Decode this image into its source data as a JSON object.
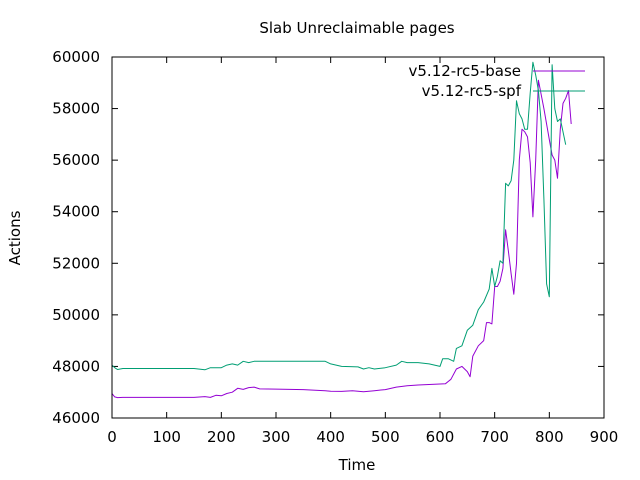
{
  "chart_data": {
    "type": "line",
    "title": "Slab Unreclaimable pages",
    "xlabel": "Time",
    "ylabel": "Actions",
    "xlim": [
      0,
      900
    ],
    "ylim": [
      46000,
      60000
    ],
    "x_ticks": [
      0,
      100,
      200,
      300,
      400,
      500,
      600,
      700,
      800,
      900
    ],
    "y_ticks": [
      46000,
      48000,
      50000,
      52000,
      54000,
      56000,
      58000,
      60000
    ],
    "grid": false,
    "legend_position": "top-right",
    "series": [
      {
        "name": "v5.12-rc5-base",
        "color": "#9400d3",
        "points": [
          [
            0,
            46950
          ],
          [
            5,
            46820
          ],
          [
            10,
            46790
          ],
          [
            20,
            46800
          ],
          [
            50,
            46800
          ],
          [
            100,
            46800
          ],
          [
            150,
            46800
          ],
          [
            170,
            46830
          ],
          [
            180,
            46800
          ],
          [
            190,
            46880
          ],
          [
            200,
            46860
          ],
          [
            210,
            46950
          ],
          [
            220,
            47000
          ],
          [
            230,
            47150
          ],
          [
            240,
            47110
          ],
          [
            250,
            47180
          ],
          [
            260,
            47200
          ],
          [
            270,
            47130
          ],
          [
            300,
            47120
          ],
          [
            350,
            47100
          ],
          [
            390,
            47060
          ],
          [
            400,
            47040
          ],
          [
            420,
            47030
          ],
          [
            440,
            47060
          ],
          [
            460,
            47020
          ],
          [
            480,
            47060
          ],
          [
            500,
            47100
          ],
          [
            520,
            47200
          ],
          [
            540,
            47250
          ],
          [
            560,
            47280
          ],
          [
            580,
            47300
          ],
          [
            600,
            47320
          ],
          [
            610,
            47330
          ],
          [
            620,
            47500
          ],
          [
            630,
            47900
          ],
          [
            640,
            48000
          ],
          [
            650,
            47800
          ],
          [
            655,
            47600
          ],
          [
            660,
            48400
          ],
          [
            670,
            48800
          ],
          [
            680,
            49000
          ],
          [
            685,
            49700
          ],
          [
            690,
            49700
          ],
          [
            695,
            49650
          ],
          [
            700,
            51100
          ],
          [
            705,
            51100
          ],
          [
            710,
            51300
          ],
          [
            715,
            51800
          ],
          [
            720,
            53300
          ],
          [
            725,
            52500
          ],
          [
            730,
            51600
          ],
          [
            735,
            50800
          ],
          [
            740,
            52000
          ],
          [
            745,
            56000
          ],
          [
            750,
            57200
          ],
          [
            755,
            57100
          ],
          [
            760,
            56900
          ],
          [
            765,
            55900
          ],
          [
            770,
            53800
          ],
          [
            775,
            56000
          ],
          [
            780,
            59100
          ],
          [
            790,
            58000
          ],
          [
            800,
            56800
          ],
          [
            805,
            56200
          ],
          [
            810,
            56000
          ],
          [
            815,
            55300
          ],
          [
            820,
            57200
          ],
          [
            825,
            58200
          ],
          [
            830,
            58400
          ],
          [
            835,
            58700
          ],
          [
            840,
            57400
          ]
        ]
      },
      {
        "name": "v5.12-rc5-spf",
        "color": "#009e73",
        "points": [
          [
            0,
            48050
          ],
          [
            5,
            47950
          ],
          [
            10,
            47880
          ],
          [
            20,
            47920
          ],
          [
            50,
            47920
          ],
          [
            100,
            47920
          ],
          [
            150,
            47920
          ],
          [
            170,
            47870
          ],
          [
            180,
            47950
          ],
          [
            190,
            47950
          ],
          [
            200,
            47950
          ],
          [
            210,
            48050
          ],
          [
            220,
            48100
          ],
          [
            230,
            48050
          ],
          [
            240,
            48200
          ],
          [
            250,
            48150
          ],
          [
            260,
            48200
          ],
          [
            300,
            48200
          ],
          [
            350,
            48200
          ],
          [
            390,
            48200
          ],
          [
            400,
            48100
          ],
          [
            420,
            48000
          ],
          [
            450,
            47980
          ],
          [
            460,
            47900
          ],
          [
            470,
            47950
          ],
          [
            480,
            47900
          ],
          [
            500,
            47950
          ],
          [
            520,
            48050
          ],
          [
            530,
            48200
          ],
          [
            540,
            48150
          ],
          [
            560,
            48150
          ],
          [
            580,
            48100
          ],
          [
            600,
            48000
          ],
          [
            605,
            48300
          ],
          [
            615,
            48300
          ],
          [
            625,
            48200
          ],
          [
            630,
            48700
          ],
          [
            640,
            48800
          ],
          [
            650,
            49400
          ],
          [
            660,
            49600
          ],
          [
            670,
            50200
          ],
          [
            680,
            50500
          ],
          [
            690,
            51000
          ],
          [
            695,
            51800
          ],
          [
            700,
            51100
          ],
          [
            705,
            51500
          ],
          [
            710,
            52100
          ],
          [
            715,
            52000
          ],
          [
            720,
            55100
          ],
          [
            725,
            55000
          ],
          [
            730,
            55200
          ],
          [
            735,
            56000
          ],
          [
            740,
            58300
          ],
          [
            745,
            57800
          ],
          [
            750,
            57600
          ],
          [
            755,
            57200
          ],
          [
            760,
            57200
          ],
          [
            765,
            58600
          ],
          [
            770,
            59800
          ],
          [
            775,
            59300
          ],
          [
            780,
            58700
          ],
          [
            785,
            57500
          ],
          [
            790,
            54500
          ],
          [
            795,
            51200
          ],
          [
            800,
            50700
          ],
          [
            805,
            59700
          ],
          [
            810,
            58000
          ],
          [
            815,
            57500
          ],
          [
            820,
            57600
          ],
          [
            830,
            56600
          ]
        ]
      }
    ]
  }
}
